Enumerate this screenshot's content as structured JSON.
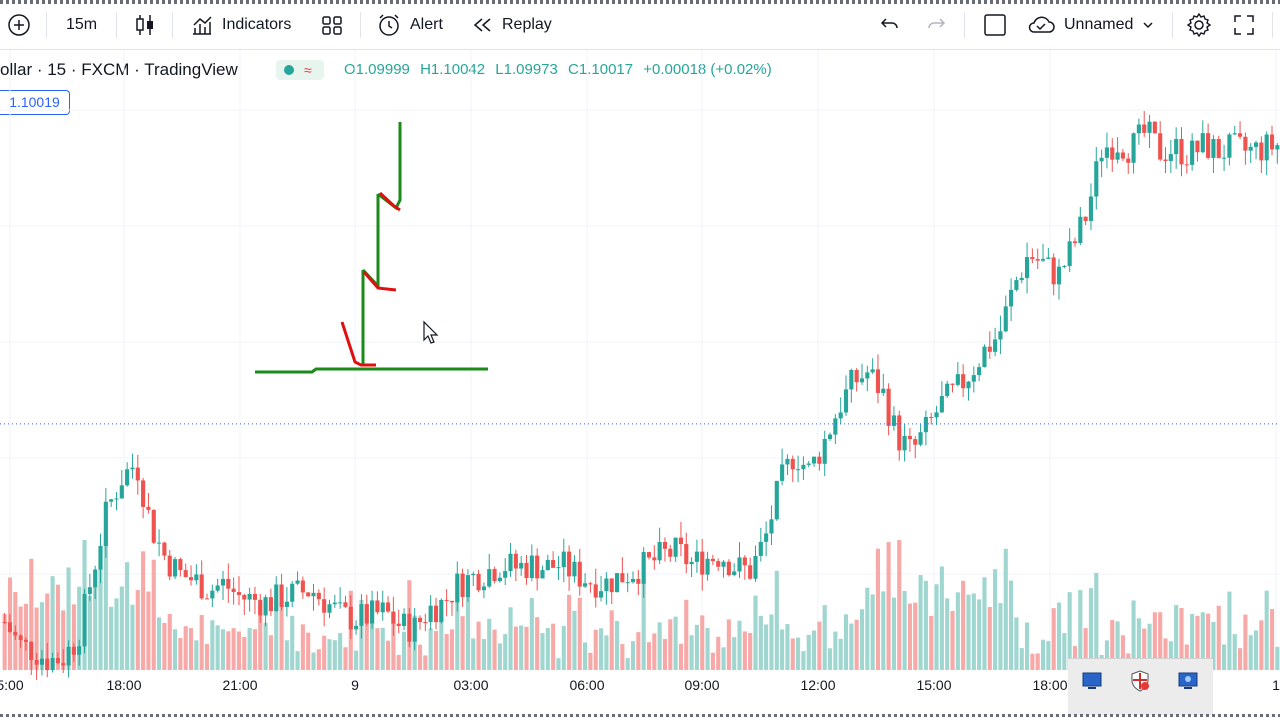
{
  "toolbar": {
    "interval": "15m",
    "indicators_label": "Indicators",
    "alert_label": "Alert",
    "replay_label": "Replay",
    "layout_name": "Unnamed"
  },
  "legend": {
    "symbol": "ollar · 15 · FXCM · TradingView",
    "open": "O1.09999",
    "high": "H1.10042",
    "low": "L1.09973",
    "close": "C1.10017",
    "change": "+0.00018 (+0.02%)"
  },
  "price_chip": "1.10019",
  "colors": {
    "up": "#26a69a",
    "down": "#ef5350",
    "up_volume": "#9fd6cf",
    "down_volume": "#f7a9a7",
    "accent": "#2962ff",
    "drawing_green": "#1a8a1a",
    "drawing_red": "#e01010"
  },
  "chart_data": {
    "type": "candlestick",
    "x_ticks": [
      "5:00",
      "18:00",
      "21:00",
      "9",
      "03:00",
      "06:00",
      "09:00",
      "12:00",
      "15:00",
      "18:00",
      "1"
    ],
    "close_path": [
      1.094,
      1.0933,
      1.0931,
      1.0928,
      1.0929,
      1.0935,
      1.0955,
      1.0975,
      1.0985,
      1.099,
      1.097,
      1.096,
      1.0955,
      1.0953,
      1.095,
      1.0952,
      1.0948,
      1.0947,
      1.0946,
      1.0948,
      1.0949,
      1.095,
      1.0946,
      1.0942,
      1.0941,
      1.0942,
      1.0943,
      1.0939,
      1.0938,
      1.0944,
      1.0946,
      1.0952,
      1.0954,
      1.0956,
      1.0958,
      1.0957,
      1.0958,
      1.0957,
      1.0958,
      1.0955,
      1.0953,
      1.0952,
      1.0954,
      1.0956,
      1.0958,
      1.0961,
      1.0962,
      1.0958,
      1.096,
      1.0961,
      1.0957,
      1.0956,
      1.0966,
      1.0983,
      1.0993,
      1.0987,
      1.0996,
      1.1007,
      1.1015,
      1.1018,
      1.1012,
      1.0998,
      1.0993,
      1.1,
      1.1008,
      1.1012,
      1.1018,
      1.1025,
      1.103,
      1.1045,
      1.1055,
      1.1052,
      1.1048,
      1.1057,
      1.1068,
      1.1088,
      1.109,
      1.1088,
      1.1093,
      1.1087,
      1.1088,
      1.1086,
      1.1089,
      1.1087,
      1.1088,
      1.1087,
      1.1088,
      1.1089
    ],
    "volume_axis_note": "",
    "horizontal_line_price": 1.10019
  },
  "tray": {}
}
